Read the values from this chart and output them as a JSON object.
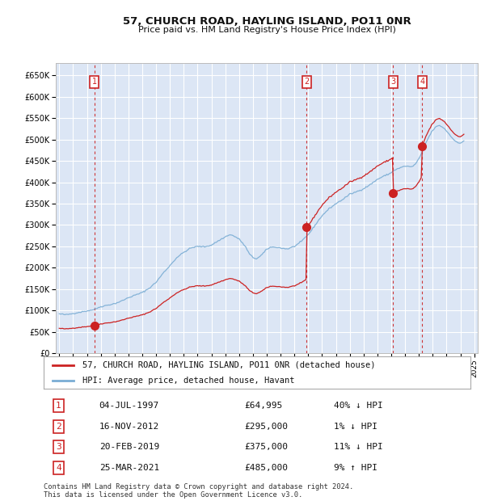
{
  "title": "57, CHURCH ROAD, HAYLING ISLAND, PO11 0NR",
  "subtitle": "Price paid vs. HM Land Registry's House Price Index (HPI)",
  "legend_line1": "57, CHURCH ROAD, HAYLING ISLAND, PO11 0NR (detached house)",
  "legend_line2": "HPI: Average price, detached house, Havant",
  "footer1": "Contains HM Land Registry data © Crown copyright and database right 2024.",
  "footer2": "This data is licensed under the Open Government Licence v3.0.",
  "sales": [
    {
      "num": 1,
      "date": "04-JUL-1997",
      "price": 64995,
      "hpi_diff": "40% ↓ HPI",
      "year": 1997.54
    },
    {
      "num": 2,
      "date": "16-NOV-2012",
      "price": 295000,
      "hpi_diff": "1% ↓ HPI",
      "year": 2012.87
    },
    {
      "num": 3,
      "date": "20-FEB-2019",
      "price": 375000,
      "hpi_diff": "11% ↓ HPI",
      "year": 2019.13
    },
    {
      "num": 4,
      "date": "25-MAR-2021",
      "price": 485000,
      "hpi_diff": "9% ↑ HPI",
      "year": 2021.23
    }
  ],
  "background_color": "#ffffff",
  "plot_bg_color": "#dce6f5",
  "grid_color": "#ffffff",
  "hpi_line_color": "#7aadd4",
  "sale_line_color": "#cc2222",
  "sale_dot_color": "#cc2222",
  "vline_color": "#cc2222",
  "box_color": "#cc2222",
  "ylim": [
    0,
    680000
  ],
  "xlim": [
    1994.75,
    2025.25
  ],
  "yticks": [
    0,
    50000,
    100000,
    150000,
    200000,
    250000,
    300000,
    350000,
    400000,
    450000,
    500000,
    550000,
    600000,
    650000
  ],
  "ytick_labels": [
    "£0",
    "£50K",
    "£100K",
    "£150K",
    "£200K",
    "£250K",
    "£300K",
    "£350K",
    "£400K",
    "£450K",
    "£500K",
    "£550K",
    "£600K",
    "£650K"
  ],
  "xticks": [
    1995,
    1996,
    1997,
    1998,
    1999,
    2000,
    2001,
    2002,
    2003,
    2004,
    2005,
    2006,
    2007,
    2008,
    2009,
    2010,
    2011,
    2012,
    2013,
    2014,
    2015,
    2016,
    2017,
    2018,
    2019,
    2020,
    2021,
    2022,
    2023,
    2024,
    2025
  ]
}
